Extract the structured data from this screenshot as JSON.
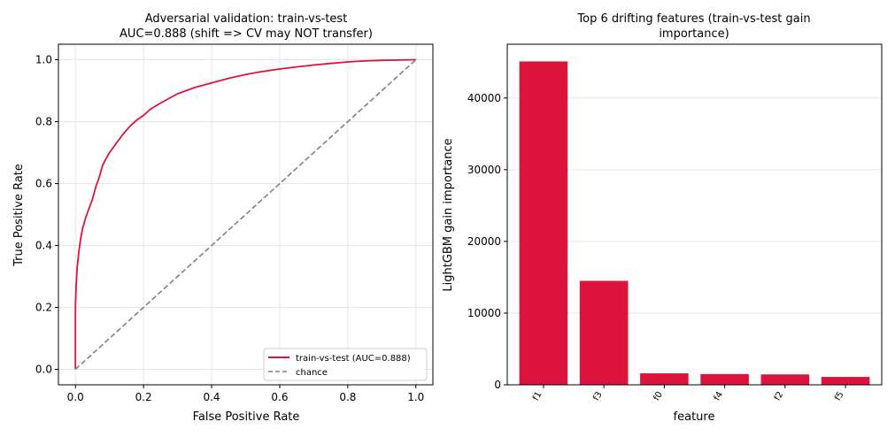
{
  "chart_data": [
    {
      "type": "line",
      "title": "Adversarial validation: train-vs-test",
      "subtitle": "AUC=0.888 (shift => CV may NOT transfer)",
      "xlabel": "False Positive Rate",
      "ylabel": "True Positive Rate",
      "xlim": [
        -0.05,
        1.05
      ],
      "ylim": [
        -0.05,
        1.05
      ],
      "xticks": [
        "0.0",
        "0.2",
        "0.4",
        "0.6",
        "0.8",
        "1.0"
      ],
      "yticks": [
        "0.0",
        "0.2",
        "0.4",
        "0.6",
        "0.8",
        "1.0"
      ],
      "grid": true,
      "legend_position": "lower-right",
      "series": [
        {
          "name": "train-vs-test (AUC=0.888)",
          "color": "#dc143c",
          "style": "solid",
          "x": [
            0.0,
            0.0,
            0.002,
            0.005,
            0.01,
            0.015,
            0.02,
            0.03,
            0.04,
            0.05,
            0.06,
            0.07,
            0.08,
            0.09,
            0.1,
            0.12,
            0.14,
            0.16,
            0.18,
            0.2,
            0.22,
            0.25,
            0.3,
            0.35,
            0.4,
            0.45,
            0.5,
            0.55,
            0.6,
            0.65,
            0.7,
            0.75,
            0.8,
            0.85,
            0.9,
            0.95,
            1.0
          ],
          "y": [
            0.0,
            0.2,
            0.27,
            0.33,
            0.38,
            0.42,
            0.45,
            0.49,
            0.52,
            0.55,
            0.59,
            0.62,
            0.66,
            0.68,
            0.7,
            0.73,
            0.76,
            0.785,
            0.805,
            0.82,
            0.84,
            0.86,
            0.89,
            0.91,
            0.925,
            0.94,
            0.952,
            0.962,
            0.97,
            0.977,
            0.983,
            0.988,
            0.993,
            0.996,
            0.998,
            0.999,
            1.0
          ]
        },
        {
          "name": "chance",
          "color": "#808080",
          "style": "dashed",
          "x": [
            0.0,
            1.0
          ],
          "y": [
            0.0,
            1.0
          ]
        }
      ]
    },
    {
      "type": "bar",
      "title": "Top 6 drifting features (train-vs-test gain",
      "subtitle": "importance)",
      "xlabel": "feature",
      "ylabel": "LightGBM gain importance",
      "categories": [
        "f1",
        "f3",
        "f0",
        "f4",
        "f2",
        "f5"
      ],
      "values": [
        45100,
        14500,
        1600,
        1500,
        1450,
        1100
      ],
      "ylim": [
        0,
        47500
      ],
      "yticks": [
        "0",
        "10000",
        "20000",
        "30000",
        "40000"
      ],
      "bar_color": "#dc143c",
      "grid": true
    }
  ]
}
